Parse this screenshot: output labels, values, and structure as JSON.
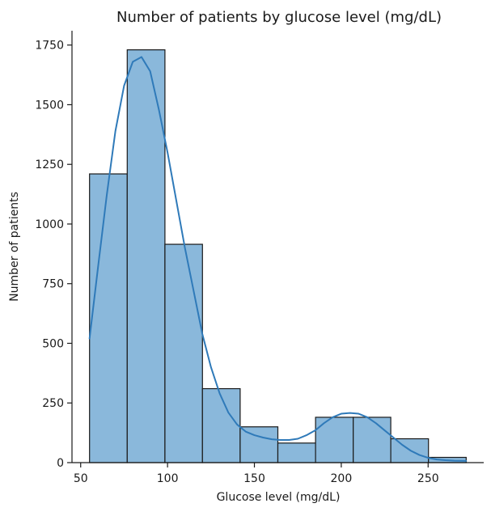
{
  "chart_data": {
    "type": "bar",
    "subtype": "histogram_with_kde",
    "title": "Number of patients by glucose level (mg/dL)",
    "xlabel": "Glucose level (mg/dL)",
    "ylabel": "Number of patients",
    "xlim": [
      45,
      282
    ],
    "ylim": [
      0,
      1810
    ],
    "x_ticks": [
      50,
      100,
      150,
      200,
      250
    ],
    "x_tick_labels": [
      "50",
      "100",
      "150",
      "200",
      "250"
    ],
    "y_ticks": [
      0,
      250,
      500,
      750,
      1000,
      1250,
      1500,
      1750
    ],
    "y_tick_labels": [
      "0",
      "250",
      "500",
      "750",
      "1000",
      "1250",
      "1500",
      "1750"
    ],
    "bins": [
      {
        "x0": 55.1,
        "x1": 76.8,
        "count": 1210
      },
      {
        "x0": 76.8,
        "x1": 98.5,
        "count": 1730
      },
      {
        "x0": 98.5,
        "x1": 120.1,
        "count": 915
      },
      {
        "x0": 120.1,
        "x1": 141.8,
        "count": 310
      },
      {
        "x0": 141.8,
        "x1": 163.5,
        "count": 150
      },
      {
        "x0": 163.5,
        "x1": 185.2,
        "count": 82
      },
      {
        "x0": 185.2,
        "x1": 206.9,
        "count": 190
      },
      {
        "x0": 206.9,
        "x1": 228.5,
        "count": 190
      },
      {
        "x0": 228.5,
        "x1": 250.2,
        "count": 100
      },
      {
        "x0": 250.2,
        "x1": 271.9,
        "count": 22
      }
    ],
    "kde_curve": {
      "x": [
        55.1,
        60,
        65,
        70,
        75,
        80,
        85,
        90,
        95,
        100,
        105,
        110,
        115,
        120,
        125,
        130,
        135,
        140,
        145,
        150,
        155,
        160,
        165,
        170,
        175,
        180,
        185,
        190,
        195,
        200,
        205,
        210,
        215,
        220,
        225,
        230,
        235,
        240,
        245,
        250,
        255,
        260,
        265,
        271.9
      ],
      "y": [
        520,
        820,
        1120,
        1390,
        1580,
        1680,
        1700,
        1640,
        1480,
        1300,
        1100,
        900,
        720,
        540,
        400,
        290,
        210,
        160,
        130,
        115,
        105,
        98,
        95,
        95,
        100,
        115,
        135,
        165,
        190,
        205,
        208,
        205,
        190,
        165,
        135,
        105,
        75,
        50,
        32,
        20,
        13,
        10,
        8,
        7
      ]
    },
    "grid": false,
    "legend": "none",
    "colors": {
      "bar_fill": "#8ab8db",
      "bar_edge": "#1a1a1a",
      "kde_line": "#2f7ab9",
      "axis": "#1a1a1a"
    }
  }
}
